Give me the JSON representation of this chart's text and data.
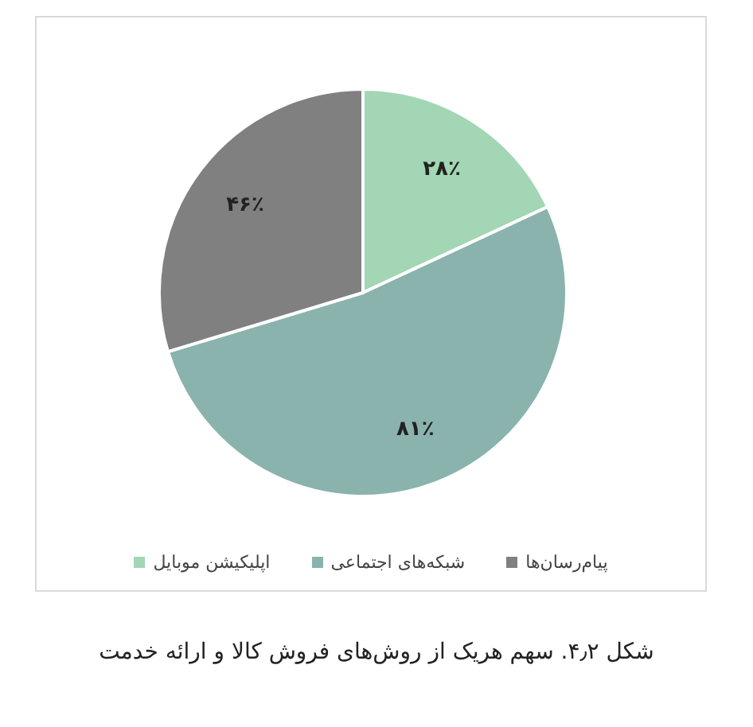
{
  "chart_data": {
    "type": "pie",
    "title": "شکل ۴٫۲. سهم هریک از روش‌های فروش کالا و ارائه خدمت",
    "categories": [
      "اپلیکیشن موبایل",
      "شبکه‌های اجتماعی",
      "پیام‌رسان‌ها"
    ],
    "values": [
      28,
      81,
      46
    ],
    "colors": [
      "#a3d6b4",
      "#8ab3ad",
      "#808080"
    ],
    "value_labels": [
      "۲۸٪",
      "۸۱٪",
      "۴۶٪"
    ],
    "legend": "bottom"
  }
}
